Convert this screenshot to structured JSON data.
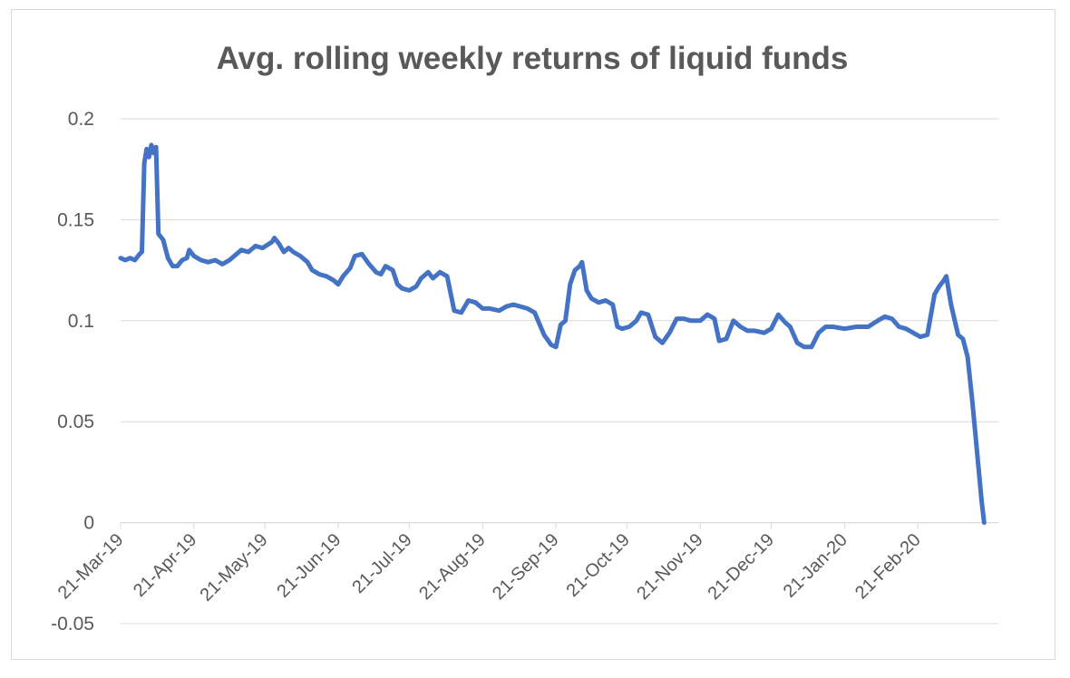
{
  "chart_data": {
    "type": "line",
    "title": "Avg. rolling weekly returns of liquid funds",
    "xlabel": "",
    "ylabel": "",
    "ylim": [
      -0.05,
      0.2
    ],
    "yticks": [
      "0.2",
      "0.15",
      "0.1",
      "0.05",
      "0",
      "-0.05"
    ],
    "xticks": [
      "21-Mar-19",
      "21-Apr-19",
      "21-May-19",
      "21-Jun-19",
      "21-Jul-19",
      "21-Aug-19",
      "21-Sep-19",
      "21-Oct-19",
      "21-Nov-19",
      "21-Dec-19",
      "21-Jan-20",
      "21-Feb-20"
    ],
    "x_start": "2019-03-21",
    "x_end": "2020-03-26",
    "grid": true,
    "line_color": "#4472c4",
    "series": [
      {
        "name": "",
        "points": [
          [
            "2019-03-21",
            0.131
          ],
          [
            "2019-03-23",
            0.13
          ],
          [
            "2019-03-25",
            0.131
          ],
          [
            "2019-03-27",
            0.13
          ],
          [
            "2019-03-29",
            0.133
          ],
          [
            "2019-03-30",
            0.134
          ],
          [
            "2019-03-31",
            0.178
          ],
          [
            "2019-04-01",
            0.185
          ],
          [
            "2019-04-02",
            0.181
          ],
          [
            "2019-04-03",
            0.187
          ],
          [
            "2019-04-04",
            0.183
          ],
          [
            "2019-04-05",
            0.186
          ],
          [
            "2019-04-06",
            0.143
          ],
          [
            "2019-04-08",
            0.14
          ],
          [
            "2019-04-10",
            0.131
          ],
          [
            "2019-04-12",
            0.127
          ],
          [
            "2019-04-14",
            0.127
          ],
          [
            "2019-04-16",
            0.13
          ],
          [
            "2019-04-18",
            0.131
          ],
          [
            "2019-04-19",
            0.135
          ],
          [
            "2019-04-21",
            0.132
          ],
          [
            "2019-04-24",
            0.13
          ],
          [
            "2019-04-27",
            0.129
          ],
          [
            "2019-04-30",
            0.13
          ],
          [
            "2019-05-03",
            0.128
          ],
          [
            "2019-05-06",
            0.13
          ],
          [
            "2019-05-09",
            0.133
          ],
          [
            "2019-05-11",
            0.135
          ],
          [
            "2019-05-14",
            0.134
          ],
          [
            "2019-05-17",
            0.137
          ],
          [
            "2019-05-20",
            0.136
          ],
          [
            "2019-05-24",
            0.139
          ],
          [
            "2019-05-25",
            0.141
          ],
          [
            "2019-05-27",
            0.138
          ],
          [
            "2019-05-29",
            0.134
          ],
          [
            "2019-05-31",
            0.136
          ],
          [
            "2019-06-02",
            0.134
          ],
          [
            "2019-06-05",
            0.132
          ],
          [
            "2019-06-08",
            0.129
          ],
          [
            "2019-06-10",
            0.125
          ],
          [
            "2019-06-13",
            0.123
          ],
          [
            "2019-06-16",
            0.122
          ],
          [
            "2019-06-19",
            0.12
          ],
          [
            "2019-06-21",
            0.118
          ],
          [
            "2019-06-23",
            0.122
          ],
          [
            "2019-06-26",
            0.126
          ],
          [
            "2019-06-28",
            0.132
          ],
          [
            "2019-07-01",
            0.133
          ],
          [
            "2019-07-04",
            0.128
          ],
          [
            "2019-07-07",
            0.124
          ],
          [
            "2019-07-09",
            0.123
          ],
          [
            "2019-07-11",
            0.127
          ],
          [
            "2019-07-14",
            0.125
          ],
          [
            "2019-07-16",
            0.118
          ],
          [
            "2019-07-18",
            0.116
          ],
          [
            "2019-07-21",
            0.115
          ],
          [
            "2019-07-24",
            0.117
          ],
          [
            "2019-07-26",
            0.121
          ],
          [
            "2019-07-29",
            0.124
          ],
          [
            "2019-07-31",
            0.121
          ],
          [
            "2019-08-03",
            0.124
          ],
          [
            "2019-08-06",
            0.122
          ],
          [
            "2019-08-09",
            0.105
          ],
          [
            "2019-08-12",
            0.104
          ],
          [
            "2019-08-15",
            0.11
          ],
          [
            "2019-08-18",
            0.109
          ],
          [
            "2019-08-21",
            0.106
          ],
          [
            "2019-08-24",
            0.106
          ],
          [
            "2019-08-28",
            0.105
          ],
          [
            "2019-08-31",
            0.107
          ],
          [
            "2019-09-03",
            0.108
          ],
          [
            "2019-09-06",
            0.107
          ],
          [
            "2019-09-09",
            0.106
          ],
          [
            "2019-09-12",
            0.104
          ],
          [
            "2019-09-16",
            0.093
          ],
          [
            "2019-09-19",
            0.088
          ],
          [
            "2019-09-21",
            0.087
          ],
          [
            "2019-09-23",
            0.098
          ],
          [
            "2019-09-25",
            0.1
          ],
          [
            "2019-09-27",
            0.118
          ],
          [
            "2019-09-29",
            0.125
          ],
          [
            "2019-10-01",
            0.127
          ],
          [
            "2019-10-02",
            0.129
          ],
          [
            "2019-10-04",
            0.115
          ],
          [
            "2019-10-06",
            0.111
          ],
          [
            "2019-10-09",
            0.109
          ],
          [
            "2019-10-12",
            0.11
          ],
          [
            "2019-10-15",
            0.108
          ],
          [
            "2019-10-17",
            0.097
          ],
          [
            "2019-10-19",
            0.096
          ],
          [
            "2019-10-22",
            0.097
          ],
          [
            "2019-10-25",
            0.1
          ],
          [
            "2019-10-27",
            0.104
          ],
          [
            "2019-10-30",
            0.103
          ],
          [
            "2019-11-02",
            0.092
          ],
          [
            "2019-11-05",
            0.089
          ],
          [
            "2019-11-08",
            0.094
          ],
          [
            "2019-11-11",
            0.101
          ],
          [
            "2019-11-14",
            0.101
          ],
          [
            "2019-11-17",
            0.1
          ],
          [
            "2019-11-21",
            0.1
          ],
          [
            "2019-11-24",
            0.103
          ],
          [
            "2019-11-27",
            0.101
          ],
          [
            "2019-11-29",
            0.09
          ],
          [
            "2019-12-02",
            0.091
          ],
          [
            "2019-12-05",
            0.1
          ],
          [
            "2019-12-08",
            0.097
          ],
          [
            "2019-12-11",
            0.095
          ],
          [
            "2019-12-14",
            0.095
          ],
          [
            "2019-12-18",
            0.094
          ],
          [
            "2019-12-21",
            0.096
          ],
          [
            "2019-12-24",
            0.103
          ],
          [
            "2019-12-27",
            0.099
          ],
          [
            "2019-12-29",
            0.097
          ],
          [
            "2020-01-01",
            0.089
          ],
          [
            "2020-01-04",
            0.087
          ],
          [
            "2020-01-07",
            0.087
          ],
          [
            "2020-01-10",
            0.094
          ],
          [
            "2020-01-13",
            0.097
          ],
          [
            "2020-01-16",
            0.097
          ],
          [
            "2020-01-21",
            0.096
          ],
          [
            "2020-01-26",
            0.097
          ],
          [
            "2020-01-31",
            0.097
          ],
          [
            "2020-02-04",
            0.1
          ],
          [
            "2020-02-07",
            0.102
          ],
          [
            "2020-02-10",
            0.101
          ],
          [
            "2020-02-13",
            0.097
          ],
          [
            "2020-02-16",
            0.096
          ],
          [
            "2020-02-19",
            0.094
          ],
          [
            "2020-02-22",
            0.092
          ],
          [
            "2020-02-25",
            0.093
          ],
          [
            "2020-02-28",
            0.113
          ],
          [
            "2020-03-01",
            0.117
          ],
          [
            "2020-03-03",
            0.12
          ],
          [
            "2020-03-04",
            0.122
          ],
          [
            "2020-03-06",
            0.108
          ],
          [
            "2020-03-09",
            0.093
          ],
          [
            "2020-03-11",
            0.091
          ],
          [
            "2020-03-13",
            0.082
          ],
          [
            "2020-03-15",
            0.06
          ],
          [
            "2020-03-17",
            0.035
          ],
          [
            "2020-03-19",
            0.01
          ],
          [
            "2020-03-20",
            0.0
          ]
        ]
      }
    ]
  }
}
